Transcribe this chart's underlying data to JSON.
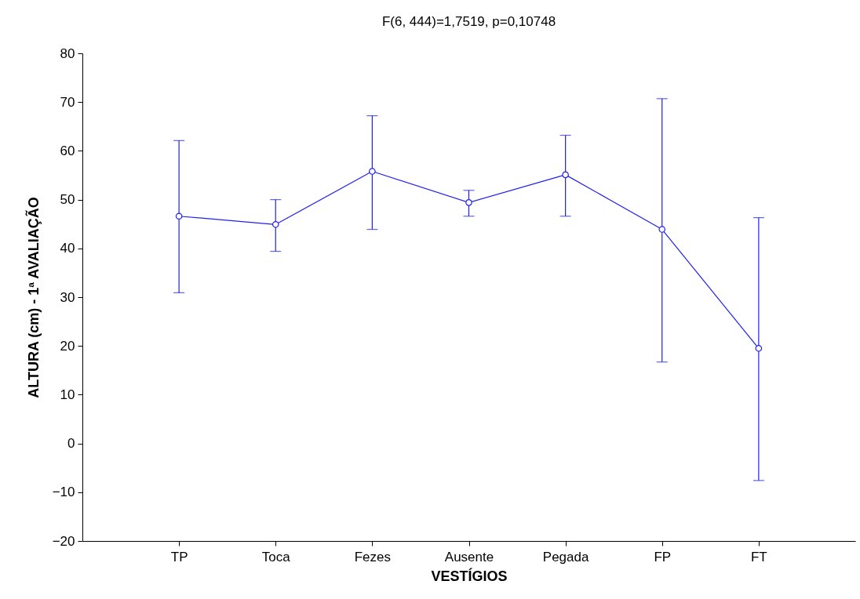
{
  "chart_data": {
    "type": "line",
    "title": "F(6, 444)=1,7519, p=0,10748",
    "xlabel": "VESTÍGIOS",
    "ylabel": "ALTURA (cm) - 1ª AVALIAÇÃO",
    "categories": [
      "TP",
      "Toca",
      "Fezes",
      "Ausente",
      "Pegada",
      "FP",
      "FT"
    ],
    "series": [
      {
        "color": "#2020f0",
        "values": [
          46.6,
          44.9,
          55.8,
          49.4,
          55.1,
          43.9,
          19.5
        ],
        "errors": [
          [
            30.9,
            62.1
          ],
          [
            39.4,
            50.0
          ],
          [
            43.9,
            67.2
          ],
          [
            46.6,
            51.9
          ],
          [
            46.6,
            63.2
          ],
          [
            16.7,
            70.7
          ],
          [
            -7.6,
            46.3
          ]
        ]
      }
    ],
    "ylim": [
      -20,
      80
    ],
    "yticks": [
      -20,
      -10,
      0,
      10,
      20,
      30,
      40,
      50,
      60,
      70,
      80
    ],
    "grid": false,
    "marker": "circle",
    "line_style": "solid"
  }
}
